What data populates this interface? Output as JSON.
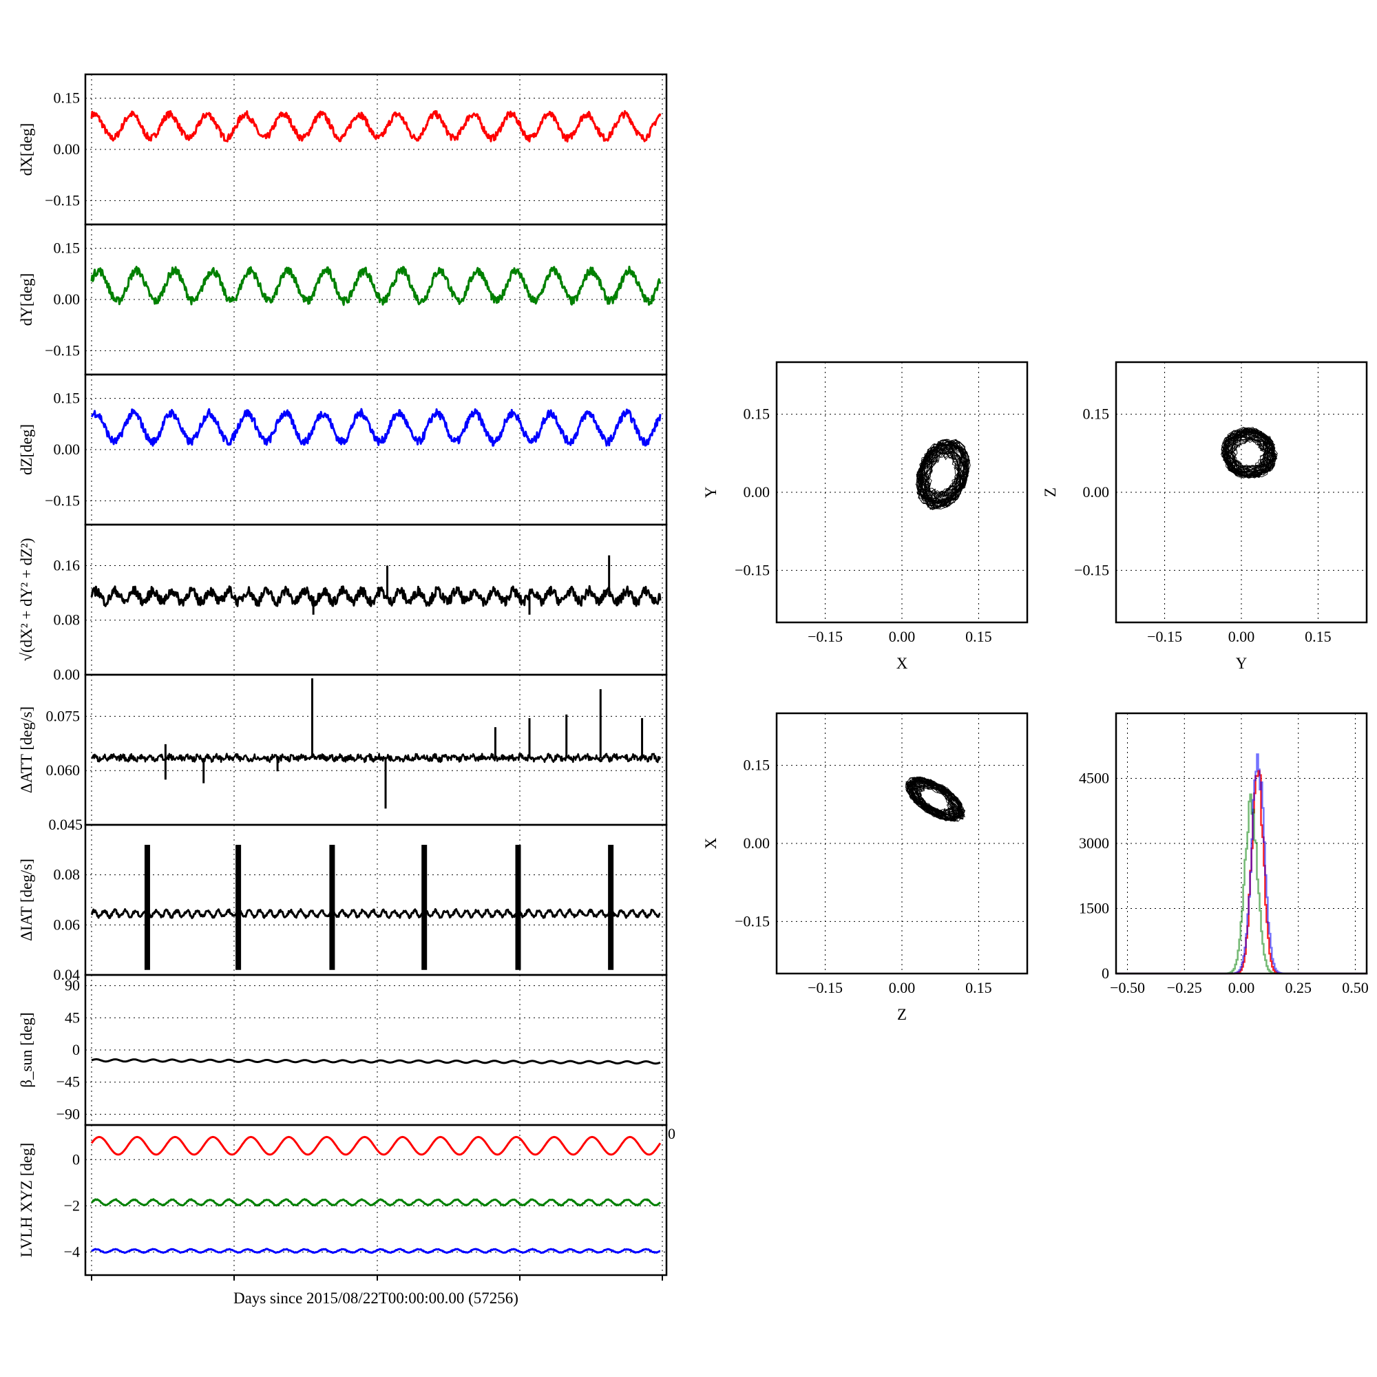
{
  "figure": {
    "xlabel": "Days since 2015/08/22T00:00:00.00 (57256)",
    "stray_tick_labels": [
      "0.045",
      "0"
    ]
  },
  "chart_data": [
    {
      "id": "dx",
      "type": "line",
      "ylabel": "dX[deg]",
      "yticks": [
        -0.15,
        0.0,
        0.15
      ],
      "yticklabels": [
        "−0.15",
        "0.00",
        "0.15"
      ],
      "ylim": [
        -0.22,
        0.22
      ],
      "xlim": [
        0,
        1
      ],
      "grid": true,
      "series": [
        {
          "color": "#ff0000",
          "width": 3,
          "base": 0.068,
          "amp": 0.035,
          "periods": 15,
          "phase": 1.2,
          "noise": 0.01,
          "offset": 0.1
        }
      ]
    },
    {
      "id": "dy",
      "type": "line",
      "ylabel": "dY[deg]",
      "yticks": [
        -0.15,
        0.0,
        0.15
      ],
      "yticklabels": [
        "−0.15",
        "0.00",
        "0.15"
      ],
      "ylim": [
        -0.22,
        0.22
      ],
      "xlim": [
        0,
        1
      ],
      "grid": true,
      "series": [
        {
          "color": "#008000",
          "width": 3,
          "base": 0.04,
          "amp": 0.045,
          "periods": 15,
          "phase": 0.4,
          "noise": 0.012,
          "offset": 0.3
        }
      ]
    },
    {
      "id": "dz",
      "type": "line",
      "ylabel": "dZ[deg]",
      "yticks": [
        -0.15,
        0.0,
        0.15
      ],
      "yticklabels": [
        "−0.15",
        "0.00",
        "0.15"
      ],
      "ylim": [
        -0.22,
        0.22
      ],
      "xlim": [
        0,
        1
      ],
      "grid": true,
      "series": [
        {
          "color": "#0000ff",
          "width": 3,
          "base": 0.065,
          "amp": 0.042,
          "periods": 15,
          "phase": 0.9,
          "noise": 0.012,
          "offset": 0.7
        }
      ]
    },
    {
      "id": "norm",
      "type": "line",
      "ylabel": "√(dX² + dY² + dZ²)",
      "yticks": [
        0.0,
        0.08,
        0.16
      ],
      "yticklabels": [
        "0.00",
        "0.08",
        "0.16"
      ],
      "ylim": [
        0.0,
        0.22
      ],
      "xlim": [
        0,
        1
      ],
      "grid": true,
      "series": [
        {
          "color": "#000000",
          "width": 3,
          "base": 0.115,
          "amp": 0.008,
          "periods": 30,
          "phase": 0.0,
          "noise": 0.007,
          "offset": 0.5
        }
      ],
      "spikes": [
        [
          0.39,
          0.088
        ],
        [
          0.52,
          0.16
        ],
        [
          0.77,
          0.088
        ],
        [
          0.91,
          0.175
        ]
      ]
    },
    {
      "id": "datt",
      "type": "line",
      "ylabel": "ΔATT [deg/s]",
      "yticks": [
        0.045,
        0.06,
        0.075
      ],
      "yticklabels": [
        "",
        "0.060",
        "0.075"
      ],
      "ylim": [
        0.045,
        0.0865
      ],
      "xlim": [
        0,
        1
      ],
      "grid": true,
      "series": [
        {
          "color": "#000000",
          "width": 2.5,
          "base": 0.0635,
          "amp": 0.0004,
          "periods": 60,
          "phase": 0.0,
          "noise": 0.0008,
          "offset": 0.2
        }
      ],
      "spikes": [
        [
          0.13,
          0.0575
        ],
        [
          0.13,
          0.0673
        ],
        [
          0.197,
          0.0565
        ],
        [
          0.327,
          0.0598
        ],
        [
          0.388,
          0.0855
        ],
        [
          0.517,
          0.0495
        ],
        [
          0.71,
          0.072
        ],
        [
          0.77,
          0.0745
        ],
        [
          0.835,
          0.0755
        ],
        [
          0.895,
          0.0825
        ],
        [
          0.968,
          0.0745
        ]
      ]
    },
    {
      "id": "diat",
      "type": "line",
      "ylabel": "ΔIAT [deg/s]",
      "yticks": [
        0.04,
        0.06,
        0.08
      ],
      "yticklabels": [
        "0.04",
        "0.06",
        "0.08"
      ],
      "ylim": [
        0.04,
        0.1
      ],
      "xlim": [
        0,
        1
      ],
      "grid": true,
      "series": [
        {
          "color": "#000000",
          "width": 3,
          "base": 0.0645,
          "amp": 0.0012,
          "periods": 55,
          "phase": 0.0,
          "noise": 0.0006,
          "offset": 0.4
        }
      ],
      "bursts": [
        0.098,
        0.258,
        0.423,
        0.585,
        0.75,
        0.913
      ],
      "burst_range": [
        0.042,
        0.092
      ]
    },
    {
      "id": "beta",
      "type": "line",
      "ylabel": "β_sun [deg]",
      "yticks": [
        -90,
        -45,
        0,
        45,
        90
      ],
      "yticklabels": [
        "−90",
        "−45",
        "0",
        "45",
        "90"
      ],
      "ylim": [
        -105,
        105
      ],
      "xlim": [
        0,
        1
      ],
      "grid": true,
      "series": [
        {
          "color": "#000000",
          "width": 3,
          "base": -14.5,
          "amp": 1.5,
          "periods": 30,
          "phase": 0.0,
          "noise": 0.0,
          "offset": 0.0,
          "drift": -3
        }
      ]
    },
    {
      "id": "lvlh",
      "type": "line",
      "ylabel": "LVLH XYZ [deg]",
      "yticks": [
        -4,
        -2,
        0
      ],
      "yticklabels": [
        "−4",
        "−2",
        "0"
      ],
      "ylim": [
        -5,
        1.5
      ],
      "xlim": [
        0,
        1
      ],
      "grid": true,
      "series": [
        {
          "color": "#ff0000",
          "width": 3,
          "base": 0.6,
          "amp": 0.38,
          "periods": 15,
          "phase": 0.3,
          "noise": 0.0,
          "offset": 0.0
        },
        {
          "color": "#008000",
          "width": 3,
          "base": -1.85,
          "amp": 0.12,
          "periods": 30,
          "phase": 0.0,
          "noise": 0.02,
          "offset": 0.0
        },
        {
          "color": "#0000ff",
          "width": 3,
          "base": -3.95,
          "amp": 0.07,
          "periods": 30,
          "phase": 0.0,
          "noise": 0.015,
          "offset": 0.0
        }
      ]
    },
    {
      "id": "xy",
      "type": "scatter",
      "xlabel": "X",
      "ylabel": "Y",
      "ticks": [
        -0.15,
        0.0,
        0.15
      ],
      "ticklabels": [
        "−0.15",
        "0.00",
        "0.15"
      ],
      "xlim": [
        -0.245,
        0.245
      ],
      "ylim": [
        -0.25,
        0.25
      ],
      "grid": true,
      "cloud": {
        "cx": 0.08,
        "cy": 0.035,
        "rx": 0.045,
        "ry": 0.065,
        "angle": -0.35
      }
    },
    {
      "id": "yz",
      "type": "scatter",
      "xlabel": "Y",
      "ylabel": "Z",
      "ticks": [
        -0.15,
        0.0,
        0.15
      ],
      "ticklabels": [
        "−0.15",
        "0.00",
        "0.15"
      ],
      "xlim": [
        -0.245,
        0.245
      ],
      "ylim": [
        -0.25,
        0.25
      ],
      "grid": true,
      "cloud": {
        "cx": 0.015,
        "cy": 0.075,
        "rx": 0.05,
        "ry": 0.045,
        "angle": -0.25
      }
    },
    {
      "id": "zx",
      "type": "scatter",
      "xlabel": "Z",
      "ylabel": "X",
      "ticks": [
        -0.15,
        0.0,
        0.15
      ],
      "ticklabels": [
        "−0.15",
        "0.00",
        "0.15"
      ],
      "xlim": [
        -0.245,
        0.245
      ],
      "ylim": [
        -0.25,
        0.25
      ],
      "grid": true,
      "cloud": {
        "cx": 0.065,
        "cy": 0.085,
        "rx": 0.06,
        "ry": 0.028,
        "angle": -0.55
      }
    },
    {
      "id": "hist",
      "type": "line",
      "xticks": [
        -0.5,
        -0.25,
        0.0,
        0.25,
        0.5
      ],
      "xticklabels": [
        "−0.50",
        "−0.25",
        "0.00",
        "0.25",
        "0.50"
      ],
      "yticks": [
        0,
        1500,
        3000,
        4500
      ],
      "yticklabels": [
        "0",
        "1500",
        "3000",
        "4500"
      ],
      "xlim": [
        -0.55,
        0.55
      ],
      "ylim": [
        0,
        6000
      ],
      "grid": true,
      "series": [
        {
          "color": "#ff0000",
          "opacity": 0.85,
          "center": 0.068,
          "sigma": 0.025,
          "peak": 5200
        },
        {
          "color": "#008000",
          "opacity": 0.55,
          "center": 0.04,
          "sigma": 0.028,
          "peak": 4200
        },
        {
          "color": "#0000ff",
          "opacity": 0.55,
          "center": 0.07,
          "sigma": 0.028,
          "peak": 5200
        }
      ]
    }
  ]
}
